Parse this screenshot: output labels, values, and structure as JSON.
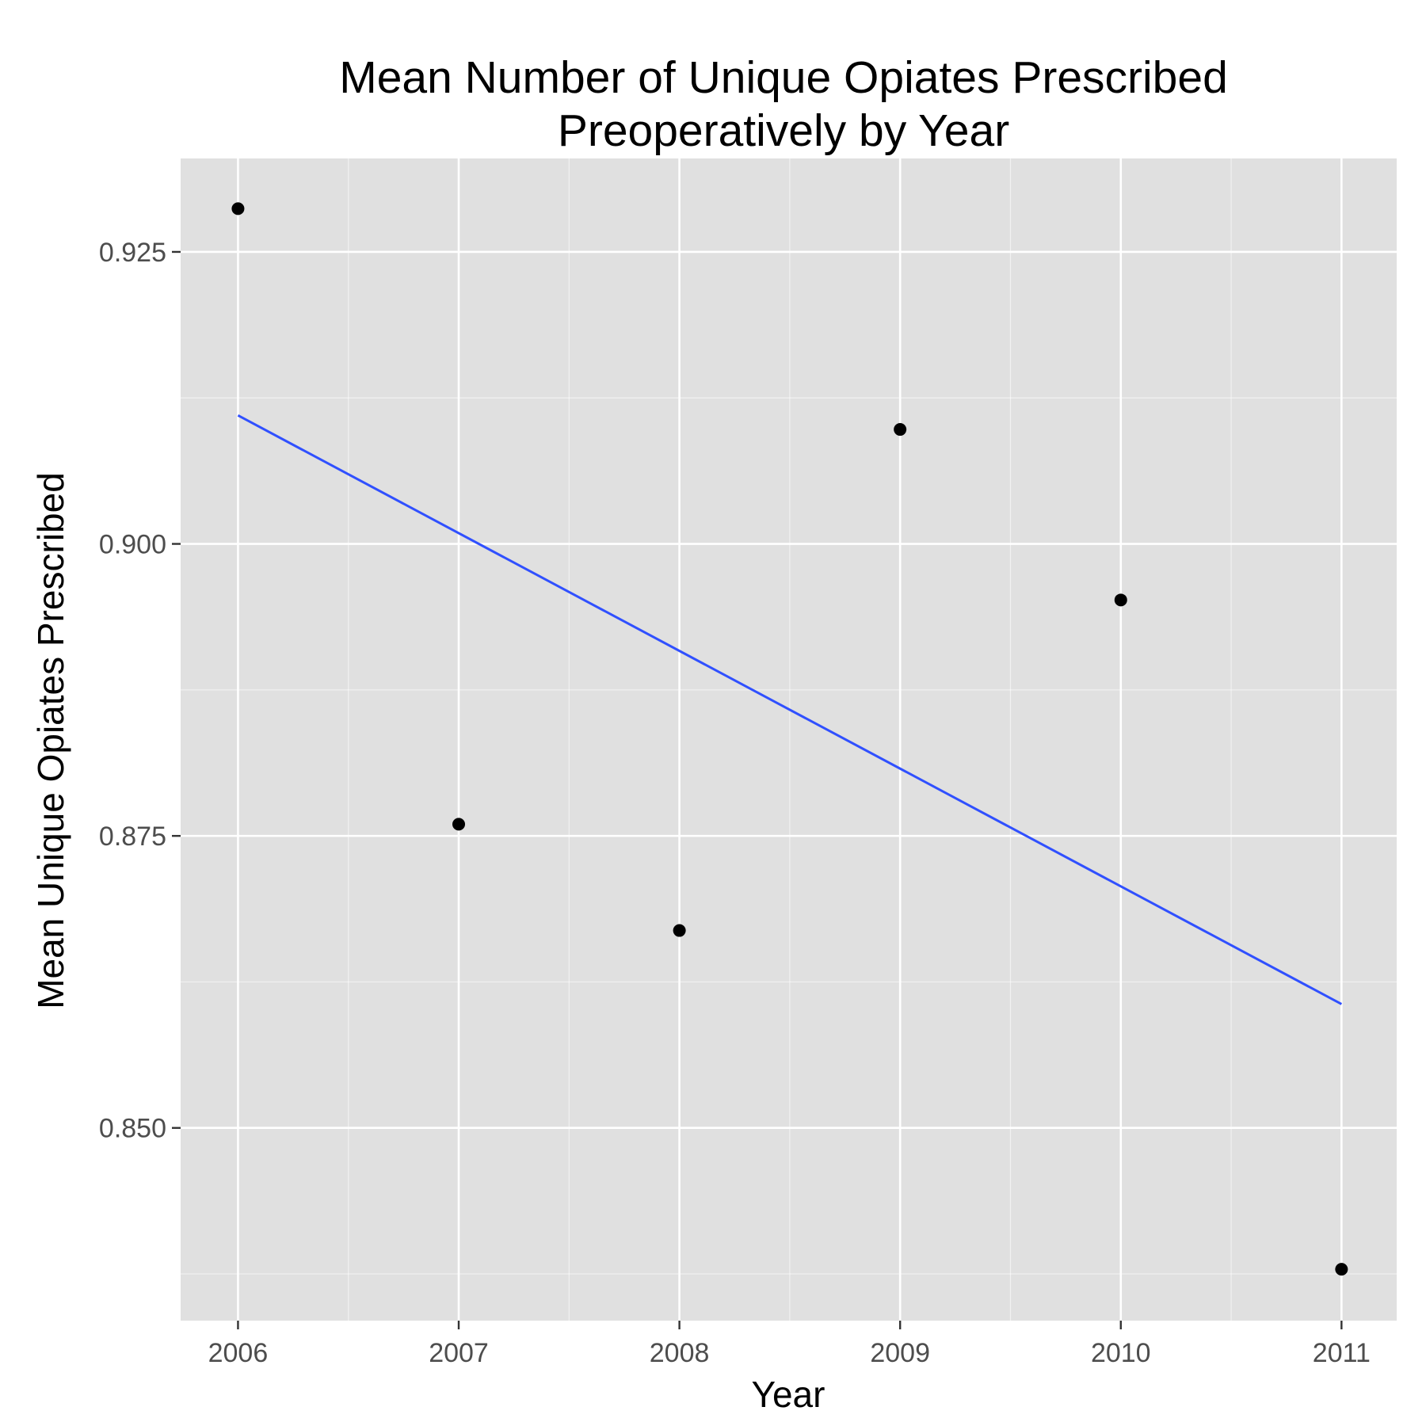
{
  "chart_data": {
    "type": "scatter",
    "title": "Mean Number of Unique Opiates Prescribed",
    "subtitle": "Preoperatively by Year",
    "xlabel": "Year",
    "ylabel": "Mean Unique Opiates Prescribed",
    "x_ticks": [
      "2006",
      "2007",
      "2008",
      "2009",
      "2010",
      "2011"
    ],
    "y_ticks": [
      "0.850",
      "0.875",
      "0.900",
      "0.925"
    ],
    "xlim": [
      2005.74,
      2011.25
    ],
    "ylim": [
      0.8335,
      0.933
    ],
    "grid": true,
    "points": [
      {
        "x": 2006,
        "y": 0.9287
      },
      {
        "x": 2007,
        "y": 0.876
      },
      {
        "x": 2008,
        "y": 0.8669
      },
      {
        "x": 2009,
        "y": 0.9098
      },
      {
        "x": 2010,
        "y": 0.8952
      },
      {
        "x": 2011,
        "y": 0.8379
      }
    ],
    "trend_line": {
      "x": [
        2006,
        2011
      ],
      "y": [
        0.911,
        0.8606
      ]
    },
    "colors": {
      "panel": "#e0e0e0",
      "grid": "#ffffff",
      "point": "#000000",
      "trend": "#3050ff"
    }
  }
}
